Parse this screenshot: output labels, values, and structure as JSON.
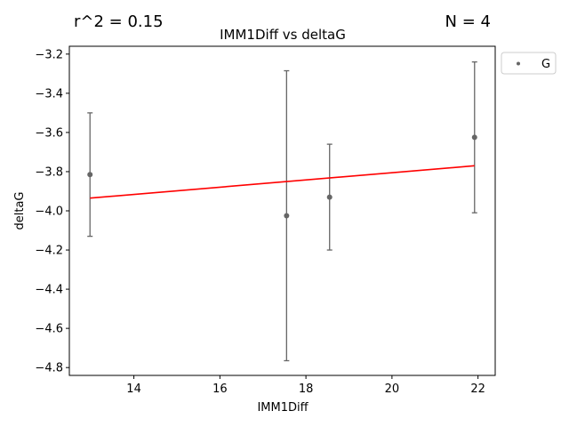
{
  "chart_data": {
    "type": "scatter",
    "title": "IMM1Diff vs deltaG",
    "xlabel": "IMM1Diff",
    "ylabel": "deltaG",
    "annotations": {
      "r2": "r^2 = 0.15",
      "n": "N = 4"
    },
    "xlim": [
      12.5,
      22.4
    ],
    "ylim": [
      -4.84,
      -3.16
    ],
    "xticks": [
      14,
      16,
      18,
      20,
      22
    ],
    "yticks": [
      -4.8,
      -4.6,
      -4.4,
      -4.2,
      -4.0,
      -3.8,
      -3.6,
      -3.4,
      -3.2
    ],
    "ytick_labels": [
      "−4.8",
      "−4.6",
      "−4.4",
      "−4.2",
      "−4.0",
      "−3.8",
      "−3.6",
      "−3.4",
      "−3.2"
    ],
    "grid": false,
    "legend": {
      "placement": "outside-top-right",
      "entries": [
        "G"
      ]
    },
    "series": [
      {
        "name": "G",
        "color": "#666666",
        "points": [
          {
            "x": 12.98,
            "y": -3.815,
            "err": 0.315
          },
          {
            "x": 17.55,
            "y": -4.025,
            "err": 0.74
          },
          {
            "x": 18.55,
            "y": -3.93,
            "err": 0.27
          },
          {
            "x": 21.92,
            "y": -3.625,
            "err": 0.385
          }
        ]
      }
    ],
    "fit_line": {
      "color": "#ff0000",
      "x": [
        12.98,
        21.92
      ],
      "y": [
        -3.935,
        -3.77
      ]
    }
  }
}
